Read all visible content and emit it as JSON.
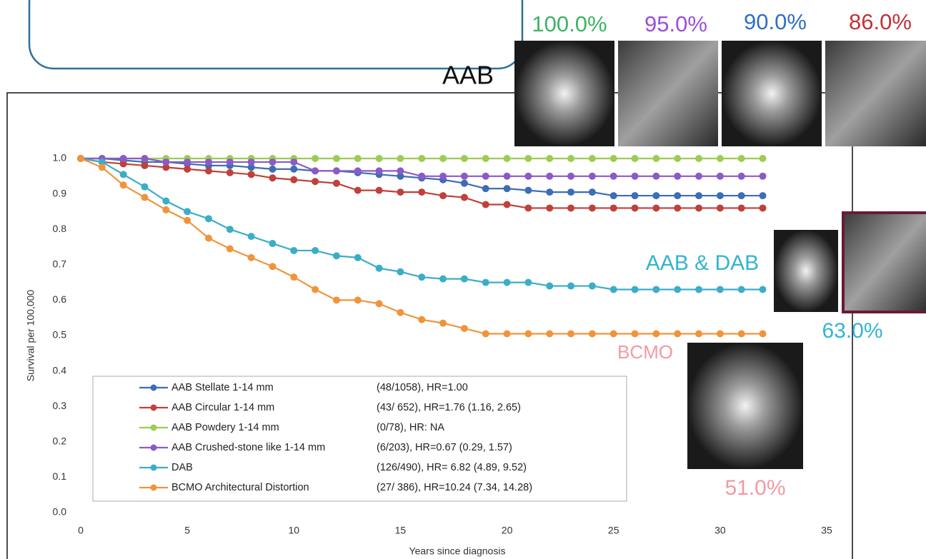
{
  "chart_data": {
    "type": "line",
    "x_label": "Years since diagnosis",
    "y_label": "Survival per 100,000",
    "x": [
      0,
      1,
      2,
      3,
      4,
      5,
      6,
      7,
      8,
      9,
      10,
      11,
      12,
      13,
      14,
      15,
      16,
      17,
      18,
      19,
      20,
      21,
      22,
      23,
      24,
      25,
      26,
      27,
      28,
      29,
      30,
      31,
      32
    ],
    "xlim": [
      0,
      35
    ],
    "xticks": [
      0,
      5,
      10,
      15,
      20,
      25,
      30,
      35
    ],
    "ylim": [
      0,
      1
    ],
    "yticks": [
      {
        "value": 0,
        "label": "0.0"
      },
      0.1,
      0.2,
      0.3,
      0.4,
      0.5,
      0.6,
      0.7,
      0.8,
      0.9,
      {
        "value": 1,
        "label": "1.0"
      }
    ],
    "grid": false,
    "series": [
      {
        "name": "AAB Stellate 1-14 mm",
        "stats": "(48/1058), HR=1.00",
        "color": "#3d6db5",
        "values": [
          1,
          1,
          0.995,
          0.99,
          0.99,
          0.985,
          0.98,
          0.98,
          0.975,
          0.97,
          0.97,
          0.965,
          0.965,
          0.96,
          0.955,
          0.95,
          0.945,
          0.94,
          0.93,
          0.915,
          0.915,
          0.91,
          0.905,
          0.905,
          0.905,
          0.895,
          0.895,
          0.895,
          0.895,
          0.895,
          0.895,
          0.895,
          0.895
        ]
      },
      {
        "name": "AAB Circular 1-14 mm",
        "stats": "(43/ 652), HR=1.76 (1.16,  2.65)",
        "color": "#c0413b",
        "values": [
          1,
          0.99,
          0.985,
          0.98,
          0.975,
          0.97,
          0.965,
          0.96,
          0.955,
          0.945,
          0.94,
          0.935,
          0.93,
          0.91,
          0.91,
          0.905,
          0.905,
          0.895,
          0.89,
          0.87,
          0.87,
          0.86,
          0.86,
          0.86,
          0.86,
          0.86,
          0.86,
          0.86,
          0.86,
          0.86,
          0.86,
          0.86,
          0.86
        ]
      },
      {
        "name": "AAB Powdery 1-14 mm",
        "stats": "(0/78), HR: NA",
        "color": "#9ccc52",
        "values": [
          1,
          1,
          1,
          1,
          1,
          1,
          1,
          1,
          1,
          1,
          1,
          1,
          1,
          1,
          1,
          1,
          1,
          1,
          1,
          1,
          1,
          1,
          1,
          1,
          1,
          1,
          1,
          1,
          1,
          1,
          1,
          1,
          1
        ]
      },
      {
        "name": "AAB Crushed-stone like 1-14 mm",
        "stats": "(6/203), HR=0.67 (0.29, 1.57)",
        "color": "#8c5ac8",
        "values": [
          1,
          1,
          1,
          1,
          0.99,
          0.99,
          0.99,
          0.99,
          0.99,
          0.99,
          0.99,
          0.965,
          0.965,
          0.965,
          0.965,
          0.965,
          0.95,
          0.95,
          0.95,
          0.95,
          0.95,
          0.95,
          0.95,
          0.95,
          0.95,
          0.95,
          0.95,
          0.95,
          0.95,
          0.95,
          0.95,
          0.95,
          0.95
        ]
      },
      {
        "name": "DAB",
        "stats": "(126/490), HR= 6.82 (4.89, 9.52)",
        "color": "#3badc8",
        "values": [
          1,
          0.99,
          0.955,
          0.92,
          0.88,
          0.85,
          0.83,
          0.8,
          0.78,
          0.76,
          0.74,
          0.74,
          0.725,
          0.72,
          0.69,
          0.68,
          0.665,
          0.66,
          0.66,
          0.65,
          0.65,
          0.65,
          0.64,
          0.64,
          0.64,
          0.63,
          0.63,
          0.63,
          0.63,
          0.63,
          0.63,
          0.63,
          0.63
        ]
      },
      {
        "name": "BCMO Architectural Distortion",
        "stats": "(27/ 386), HR=10.24 (7.34, 14.28)",
        "color": "#f0943b",
        "values": [
          1,
          0.975,
          0.925,
          0.89,
          0.855,
          0.825,
          0.775,
          0.745,
          0.72,
          0.695,
          0.665,
          0.63,
          0.6,
          0.6,
          0.59,
          0.565,
          0.545,
          0.535,
          0.52,
          0.505,
          0.505,
          0.505,
          0.505,
          0.505,
          0.505,
          0.505,
          0.505,
          0.505,
          0.505,
          0.505,
          0.505,
          0.505,
          0.505
        ]
      }
    ],
    "annotations": [
      {
        "text": "AAB",
        "color": "#111111"
      },
      {
        "text": "100.0%",
        "color": "#3cb464"
      },
      {
        "text": "95.0%",
        "color": "#9b4fd6"
      },
      {
        "text": "90.0%",
        "color": "#2f6fc4"
      },
      {
        "text": "86.0%",
        "color": "#c0323a"
      },
      {
        "text": "AAB & DAB",
        "color": "#32b4d2"
      },
      {
        "text": "63.0%",
        "color": "#32b4d2"
      },
      {
        "text": "BCMO",
        "color": "#f29aa0"
      },
      {
        "text": "51.0%",
        "color": "#f29aa0"
      }
    ]
  }
}
